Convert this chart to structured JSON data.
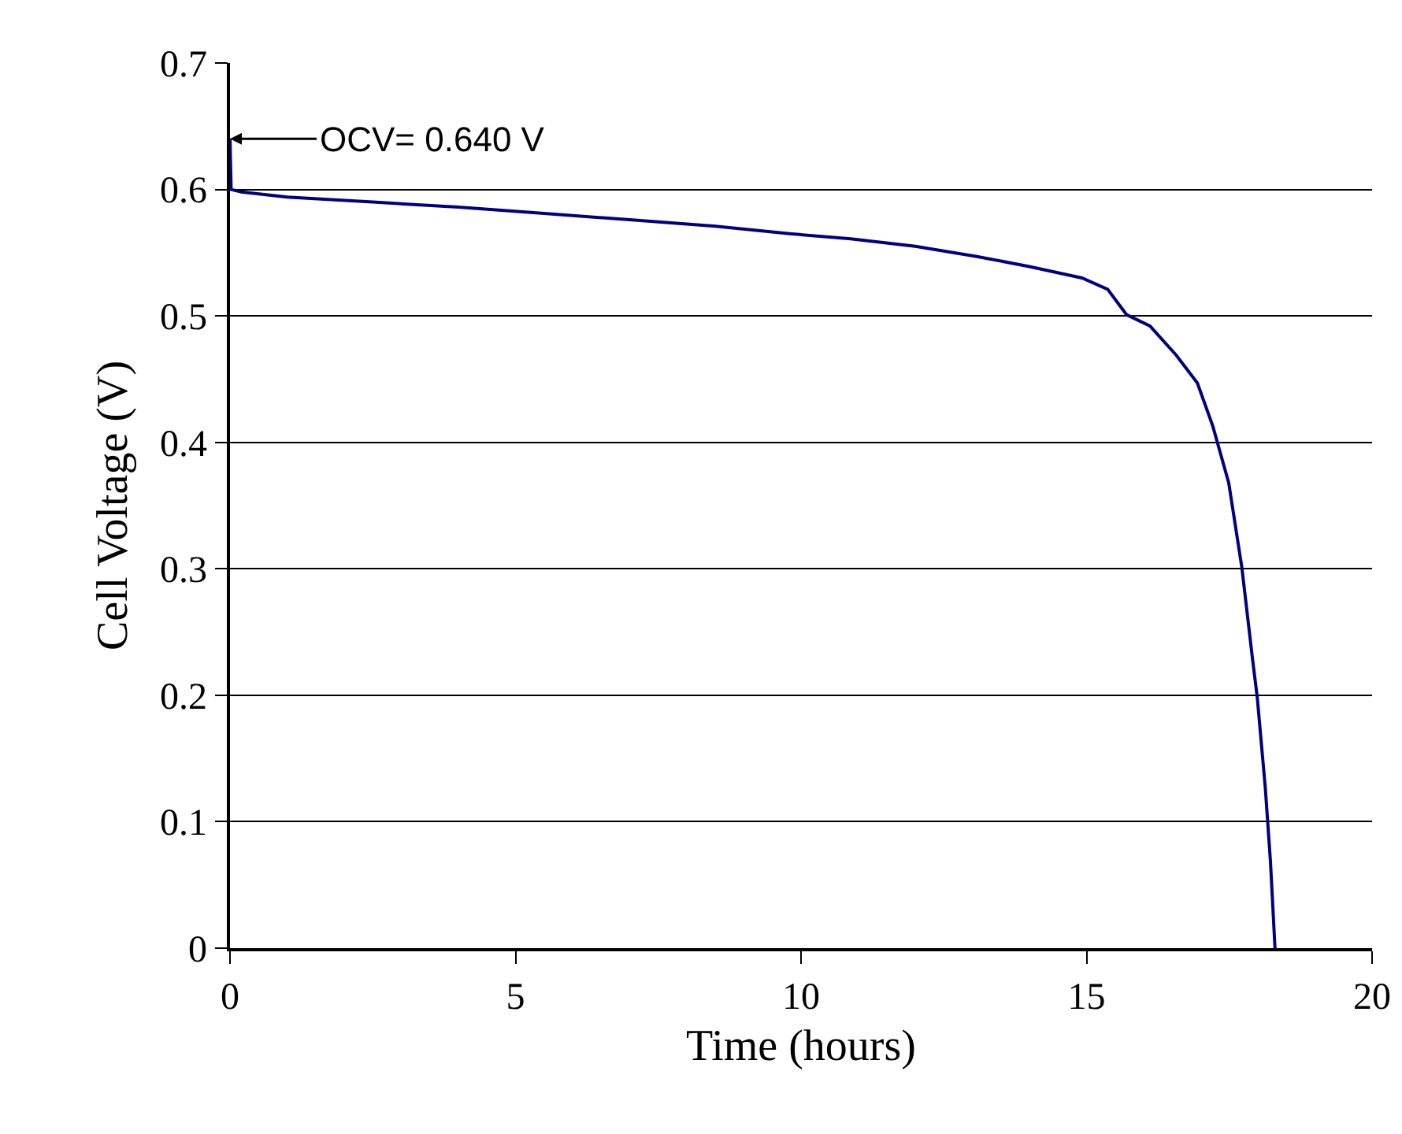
{
  "chart_data": {
    "type": "line",
    "xlabel": "Time (hours)",
    "ylabel": "Cell Voltage (V)",
    "xlim": [
      0,
      20
    ],
    "xticks": [
      0,
      5,
      10,
      15,
      20
    ],
    "ylim": [
      0,
      0.7
    ],
    "yticks": [
      0,
      0.1,
      0.2,
      0.3,
      0.4,
      0.5,
      0.6,
      0.7
    ],
    "grid": "y",
    "marker": "none",
    "line_style": "solid",
    "annotations": [
      {
        "text": "OCV= 0.640 V",
        "x": 0,
        "y": 0.64
      }
    ],
    "series": [
      {
        "color": "#000080",
        "x": [
          0,
          0.02,
          0.2,
          1,
          2.5,
          4,
          5.5,
          7,
          8.5,
          9.8,
          10.87,
          12,
          13.08,
          14,
          14.92,
          15.37,
          15.7,
          16.11,
          16.57,
          16.94,
          17.21,
          17.49,
          17.72,
          17.9,
          17.99,
          18.13,
          18.22,
          18.3
        ],
        "values": [
          0.64,
          0.6,
          0.598,
          0.594,
          0.59,
          0.586,
          0.581,
          0.576,
          0.571,
          0.565,
          0.561,
          0.555,
          0.547,
          0.539,
          0.53,
          0.521,
          0.501,
          0.492,
          0.469,
          0.447,
          0.413,
          0.368,
          0.301,
          0.231,
          0.198,
          0.127,
          0.069,
          0
        ]
      }
    ]
  }
}
